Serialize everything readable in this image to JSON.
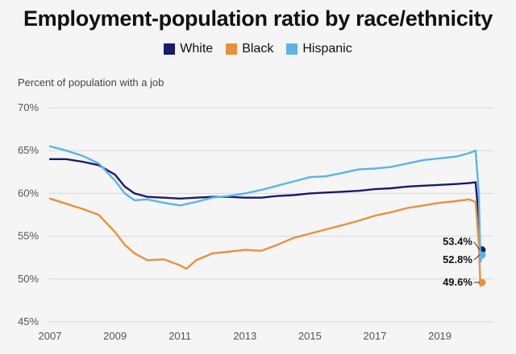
{
  "colors": {
    "white": "#1a1a6e",
    "black": "#e8913a",
    "hispanic": "#5bb4e8",
    "grid": "#d8d8d8",
    "background": "#f5f5f5"
  },
  "chart_data": {
    "type": "line",
    "title": "Employment-population ratio by race/ethnicity",
    "ylabel": "Percent of population with a job",
    "xlabel": "",
    "xlim": [
      2007,
      2020.5
    ],
    "ylim": [
      45,
      70
    ],
    "x_ticks": [
      {
        "value": 2007,
        "label": "2007"
      },
      {
        "value": 2009,
        "label": "2009"
      },
      {
        "value": 2011,
        "label": "2011"
      },
      {
        "value": 2013,
        "label": "2013"
      },
      {
        "value": 2015,
        "label": "2015"
      },
      {
        "value": 2017,
        "label": "2017"
      },
      {
        "value": 2019,
        "label": "2019"
      }
    ],
    "y_ticks": [
      {
        "value": 45,
        "label": "45%"
      },
      {
        "value": 50,
        "label": "50%"
      },
      {
        "value": 55,
        "label": "55%"
      },
      {
        "value": 60,
        "label": "60%"
      },
      {
        "value": 65,
        "label": "65%"
      },
      {
        "value": 70,
        "label": "70%"
      }
    ],
    "grid": true,
    "legend_position": "top-center",
    "series": [
      {
        "name": "White",
        "color_key": "white",
        "points": [
          [
            2007,
            64.0
          ],
          [
            2007.5,
            64.0
          ],
          [
            2008,
            63.7
          ],
          [
            2008.5,
            63.3
          ],
          [
            2009,
            62.2
          ],
          [
            2009.3,
            60.8
          ],
          [
            2009.6,
            60.0
          ],
          [
            2010,
            59.6
          ],
          [
            2010.5,
            59.5
          ],
          [
            2011,
            59.4
          ],
          [
            2011.5,
            59.5
          ],
          [
            2012,
            59.6
          ],
          [
            2012.5,
            59.6
          ],
          [
            2013,
            59.5
          ],
          [
            2013.5,
            59.5
          ],
          [
            2014,
            59.7
          ],
          [
            2014.5,
            59.8
          ],
          [
            2015,
            60.0
          ],
          [
            2015.5,
            60.1
          ],
          [
            2016,
            60.2
          ],
          [
            2016.5,
            60.3
          ],
          [
            2017,
            60.5
          ],
          [
            2017.5,
            60.6
          ],
          [
            2018,
            60.8
          ],
          [
            2018.5,
            60.9
          ],
          [
            2019,
            61.0
          ],
          [
            2019.5,
            61.1
          ],
          [
            2019.9,
            61.2
          ],
          [
            2020.1,
            61.3
          ],
          [
            2020.2,
            57.0
          ],
          [
            2020.25,
            53.0
          ],
          [
            2020.3,
            53.4
          ]
        ]
      },
      {
        "name": "Black",
        "color_key": "black",
        "points": [
          [
            2007,
            59.4
          ],
          [
            2007.5,
            58.8
          ],
          [
            2008,
            58.2
          ],
          [
            2008.5,
            57.5
          ],
          [
            2009,
            55.5
          ],
          [
            2009.3,
            54.0
          ],
          [
            2009.6,
            53.0
          ],
          [
            2010,
            52.2
          ],
          [
            2010.5,
            52.3
          ],
          [
            2011,
            51.6
          ],
          [
            2011.2,
            51.2
          ],
          [
            2011.5,
            52.2
          ],
          [
            2012,
            53.0
          ],
          [
            2012.5,
            53.2
          ],
          [
            2013,
            53.4
          ],
          [
            2013.5,
            53.3
          ],
          [
            2014,
            54.0
          ],
          [
            2014.5,
            54.8
          ],
          [
            2015,
            55.3
          ],
          [
            2015.5,
            55.8
          ],
          [
            2016,
            56.3
          ],
          [
            2016.5,
            56.8
          ],
          [
            2017,
            57.4
          ],
          [
            2017.5,
            57.8
          ],
          [
            2018,
            58.3
          ],
          [
            2018.5,
            58.6
          ],
          [
            2019,
            58.9
          ],
          [
            2019.5,
            59.1
          ],
          [
            2019.9,
            59.3
          ],
          [
            2020.1,
            59.0
          ],
          [
            2020.2,
            54.0
          ],
          [
            2020.25,
            49.2
          ],
          [
            2020.3,
            49.6
          ]
        ]
      },
      {
        "name": "Hispanic",
        "color_key": "hispanic",
        "points": [
          [
            2007,
            65.5
          ],
          [
            2007.5,
            65.0
          ],
          [
            2008,
            64.4
          ],
          [
            2008.5,
            63.5
          ],
          [
            2009,
            61.5
          ],
          [
            2009.3,
            60.0
          ],
          [
            2009.6,
            59.2
          ],
          [
            2010,
            59.3
          ],
          [
            2010.5,
            58.9
          ],
          [
            2011,
            58.6
          ],
          [
            2011.5,
            59.0
          ],
          [
            2012,
            59.5
          ],
          [
            2012.5,
            59.7
          ],
          [
            2013,
            60.0
          ],
          [
            2013.5,
            60.4
          ],
          [
            2014,
            60.9
          ],
          [
            2014.5,
            61.4
          ],
          [
            2015,
            61.9
          ],
          [
            2015.5,
            62.0
          ],
          [
            2016,
            62.4
          ],
          [
            2016.5,
            62.8
          ],
          [
            2017,
            62.9
          ],
          [
            2017.5,
            63.1
          ],
          [
            2018,
            63.5
          ],
          [
            2018.5,
            63.9
          ],
          [
            2019,
            64.1
          ],
          [
            2019.5,
            64.3
          ],
          [
            2019.9,
            64.7
          ],
          [
            2020.1,
            65.0
          ],
          [
            2020.2,
            60.0
          ],
          [
            2020.25,
            52.0
          ],
          [
            2020.3,
            52.8
          ]
        ]
      }
    ],
    "end_labels": [
      {
        "series": "White",
        "text": "53.4%",
        "value": 53.4
      },
      {
        "series": "Hispanic",
        "text": "52.8%",
        "value": 52.8
      },
      {
        "series": "Black",
        "text": "49.6%",
        "value": 49.6
      }
    ]
  }
}
